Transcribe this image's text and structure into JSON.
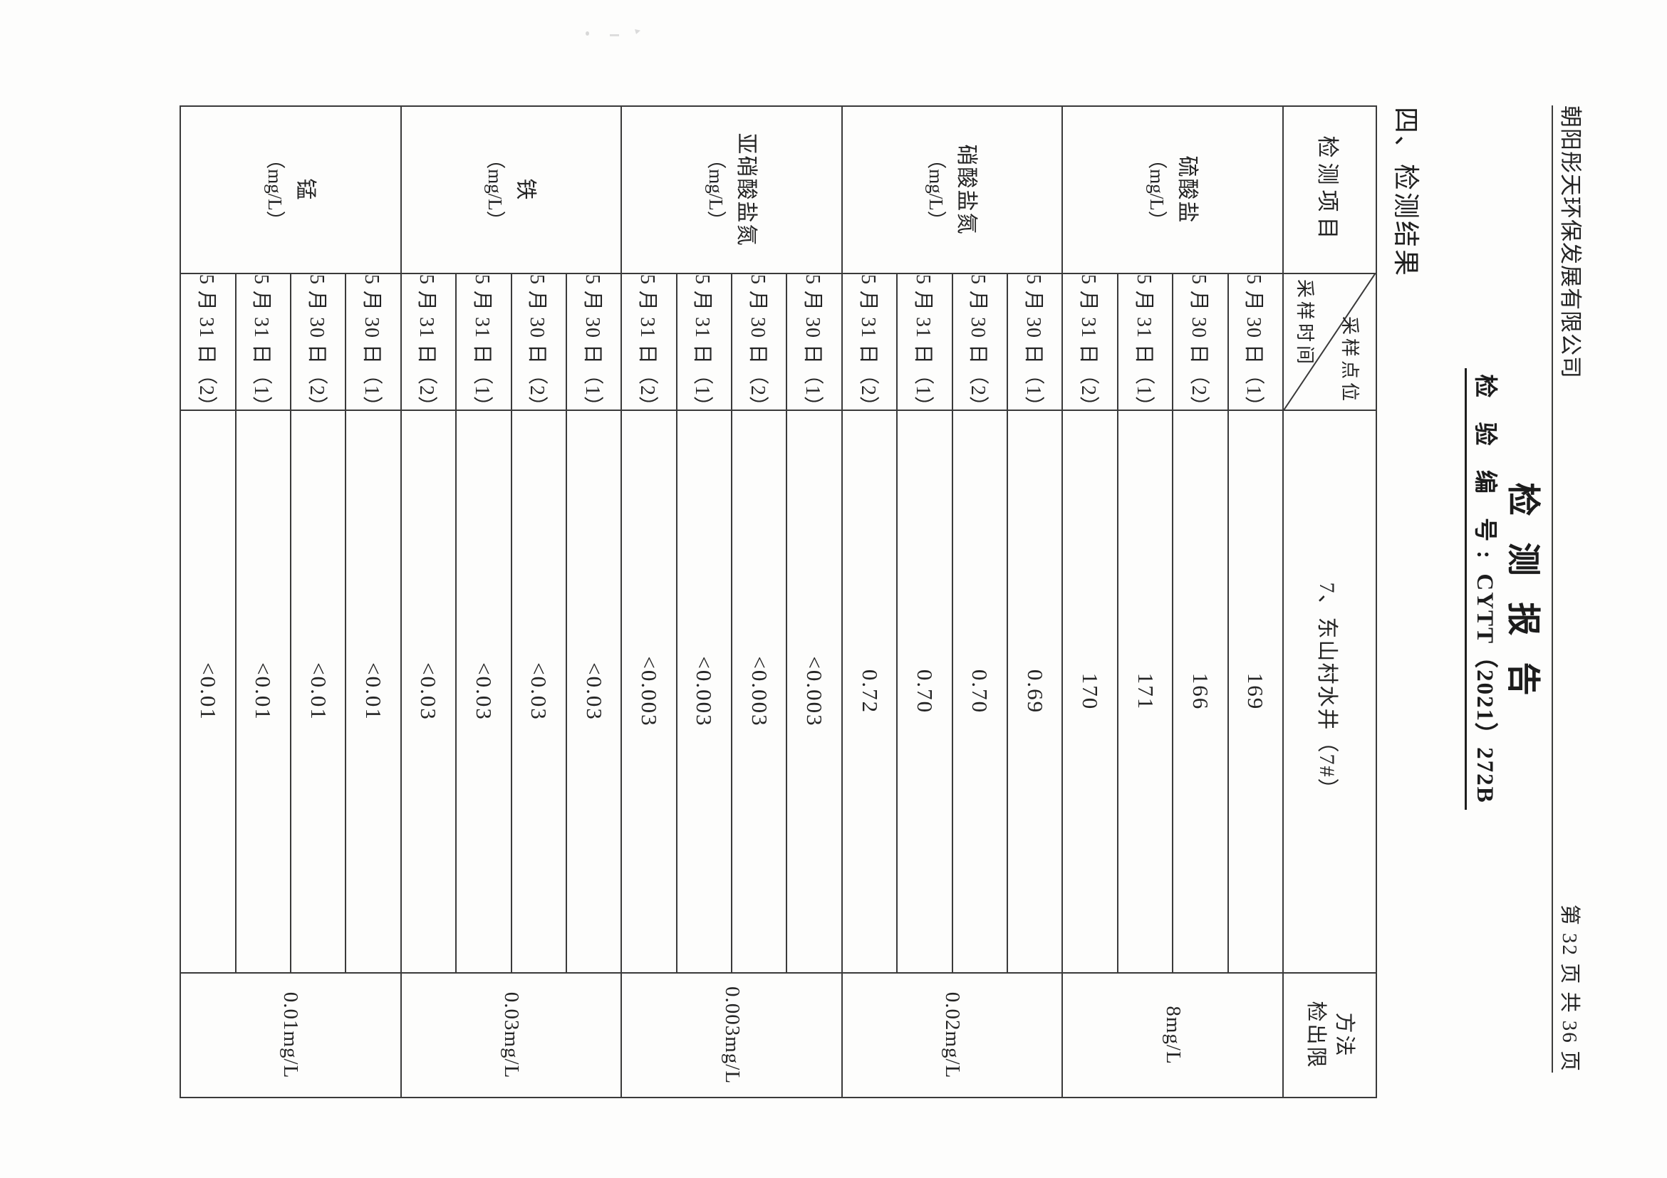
{
  "page": {
    "company": "朝阳彤天环保发展有限公司",
    "page_info": "第 32 页  共 36 页",
    "title": "检测报告",
    "report_no_label": "检 验 编 号:",
    "report_no_value": "CYTT（2021）272B",
    "section_heading": "四、检测结果"
  },
  "table": {
    "header": {
      "item": "检测项目",
      "diag_top": "采样点位",
      "diag_bottom": "采样时间",
      "site": "7、东山村水井（7#）",
      "limit_line1": "方法",
      "limit_line2": "检出限"
    },
    "groups": [
      {
        "param": "硫酸盐",
        "unit": "（mg/L）",
        "limit": "8mg/L",
        "rows": [
          {
            "date": "5 月 30 日（1）",
            "value": "169"
          },
          {
            "date": "5 月 30 日（2）",
            "value": "166"
          },
          {
            "date": "5 月 31 日（1）",
            "value": "171"
          },
          {
            "date": "5 月 31 日（2）",
            "value": "170"
          }
        ]
      },
      {
        "param": "硝酸盐氮",
        "unit": "（mg/L）",
        "limit": "0.02mg/L",
        "rows": [
          {
            "date": "5 月 30 日（1）",
            "value": "0.69"
          },
          {
            "date": "5 月 30 日（2）",
            "value": "0.70"
          },
          {
            "date": "5 月 31 日（1）",
            "value": "0.70"
          },
          {
            "date": "5 月 31 日（2）",
            "value": "0.72"
          }
        ]
      },
      {
        "param": "亚硝酸盐氮",
        "unit": "（mg/L）",
        "limit": "0.003mg/L",
        "rows": [
          {
            "date": "5 月 30 日（1）",
            "value": "<0.003"
          },
          {
            "date": "5 月 30 日（2）",
            "value": "<0.003"
          },
          {
            "date": "5 月 31 日（1）",
            "value": "<0.003"
          },
          {
            "date": "5 月 31 日（2）",
            "value": "<0.003"
          }
        ]
      },
      {
        "param": "铁",
        "unit": "（mg/L）",
        "limit": "0.03mg/L",
        "rows": [
          {
            "date": "5 月 30 日（1）",
            "value": "<0.03"
          },
          {
            "date": "5 月 30 日（2）",
            "value": "<0.03"
          },
          {
            "date": "5 月 31 日（1）",
            "value": "<0.03"
          },
          {
            "date": "5 月 31 日（2）",
            "value": "<0.03"
          }
        ]
      },
      {
        "param": "锰",
        "unit": "（mg/L）",
        "limit": "0.01mg/L",
        "rows": [
          {
            "date": "5 月 30 日（1）",
            "value": "<0.01"
          },
          {
            "date": "5 月 31 日（1）",
            "value": "<0.01"
          },
          {
            "date": "5 月 30 日（2）",
            "value": "<0.01"
          },
          {
            "date": "5 月 31 日（2）",
            "value": "<0.01"
          }
        ]
      }
    ]
  }
}
